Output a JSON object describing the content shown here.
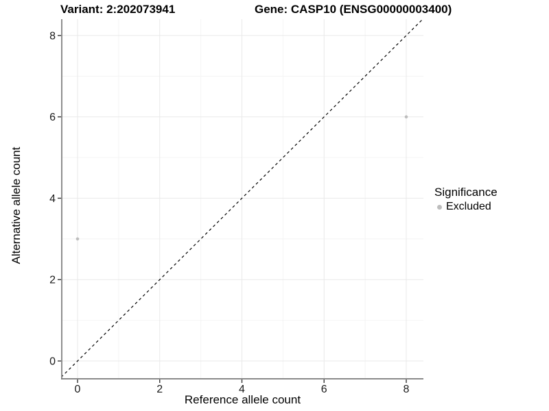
{
  "header": {
    "title_left": "Variant: 2:202073941",
    "title_right": "Gene: CASP10 (ENSG00000003400)"
  },
  "legend": {
    "title": "Significance",
    "items": [
      {
        "label": "Excluded",
        "color": "#bdbdbd"
      }
    ]
  },
  "chart_data": {
    "type": "scatter",
    "title": "Variant: 2:202073941 — Gene: CASP10 (ENSG00000003400)",
    "xlabel": "Reference allele count",
    "ylabel": "Alternative allele count",
    "xlim": [
      -0.4,
      8.42
    ],
    "ylim": [
      -0.45,
      8.4
    ],
    "xticks": [
      0,
      2,
      4,
      6,
      8
    ],
    "yticks": [
      0,
      2,
      4,
      6,
      8
    ],
    "minor_xticks": [
      1,
      3,
      5,
      7
    ],
    "minor_yticks": [
      1,
      3,
      5,
      7
    ],
    "grid": true,
    "legend_position": "right",
    "series": [
      {
        "name": "Excluded",
        "color": "#bdbdbd",
        "points": [
          {
            "x": 0,
            "y": 3
          },
          {
            "x": 8,
            "y": 6
          }
        ]
      }
    ],
    "reference_line": {
      "kind": "identity",
      "equation": "y = x",
      "style": "dashed",
      "color": "#000000"
    }
  },
  "style": {
    "grid_major": "#e9e9e9",
    "grid_minor": "#f4f4f4",
    "axis_line": "#7a7a7a",
    "tick_color": "#333333",
    "tick_label_color": "#1a1a1a",
    "point_color": "#bdbdbd"
  }
}
